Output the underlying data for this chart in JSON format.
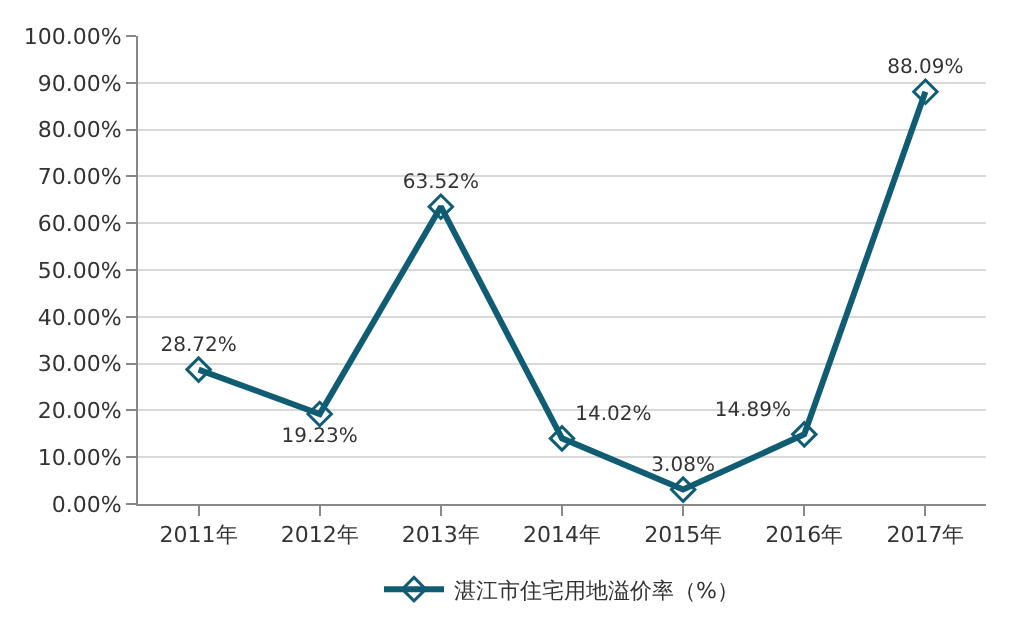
{
  "chart_data": {
    "type": "line",
    "categories": [
      "2011年",
      "2012年",
      "2013年",
      "2014年",
      "2015年",
      "2016年",
      "2017年"
    ],
    "series": [
      {
        "name": "湛江市住宅用地溢价率（%）",
        "color": "#0f5c73",
        "values": [
          28.72,
          19.23,
          63.52,
          14.02,
          3.08,
          14.89,
          88.09
        ],
        "value_labels": [
          "28.72%",
          "19.23%",
          "63.52%",
          "14.02%",
          "3.08%",
          "14.89%",
          "88.09%"
        ]
      }
    ],
    "ylim": [
      0,
      100
    ],
    "yticks": [
      {
        "value": 0,
        "label": "0.00%"
      },
      {
        "value": 10,
        "label": "10.00%"
      },
      {
        "value": 20,
        "label": "20.00%"
      },
      {
        "value": 30,
        "label": "30.00%"
      },
      {
        "value": 40,
        "label": "40.00%"
      },
      {
        "value": 50,
        "label": "50.00%"
      },
      {
        "value": 60,
        "label": "60.00%"
      },
      {
        "value": 70,
        "label": "70.00%"
      },
      {
        "value": 80,
        "label": "80.00%"
      },
      {
        "value": 90,
        "label": "90.00%"
      },
      {
        "value": 100,
        "label": "100.00%"
      }
    ],
    "grid": "y",
    "legend": "bottom",
    "marker": "diamond",
    "line_style": "solid"
  }
}
